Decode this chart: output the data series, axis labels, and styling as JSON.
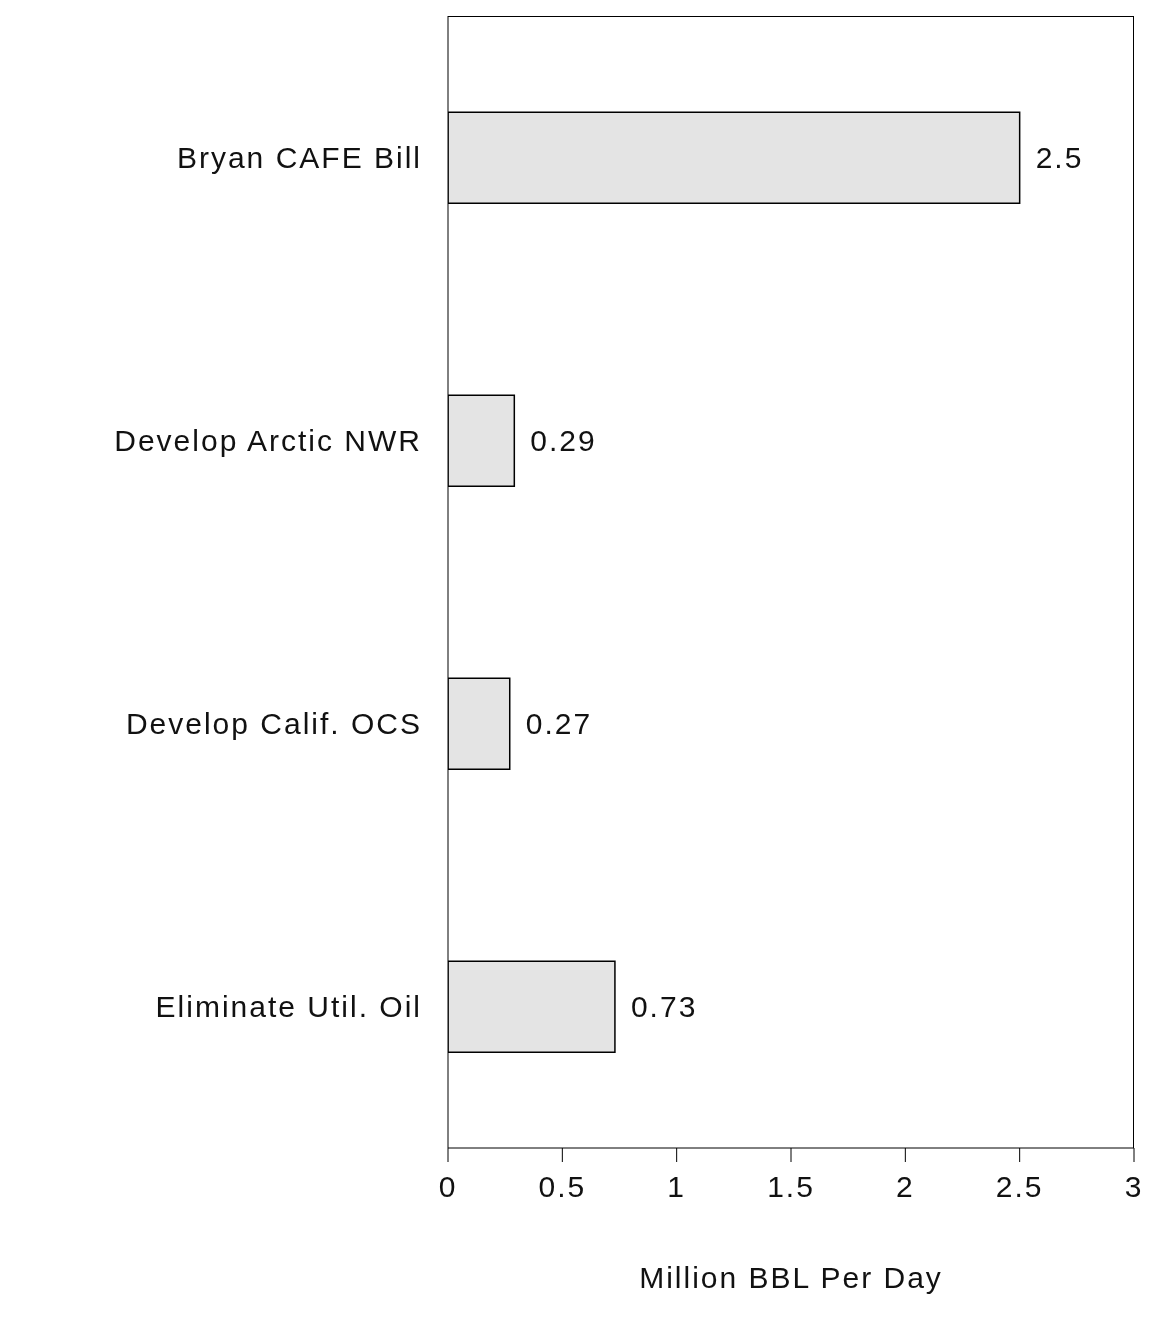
{
  "chart_data": {
    "type": "bar",
    "orientation": "horizontal",
    "xlabel": "Million BBL Per Day",
    "categories": [
      "Bryan CAFE Bill",
      "Develop Arctic NWR",
      "Develop Calif. OCS",
      "Eliminate Util. Oil"
    ],
    "values": [
      2.5,
      0.29,
      0.27,
      0.73
    ],
    "color": "#e4e4e4",
    "xlim": [
      0,
      3
    ],
    "xticks": [
      0,
      0.5,
      1,
      1.5,
      2,
      2.5,
      3
    ],
    "data_labels": true
  }
}
